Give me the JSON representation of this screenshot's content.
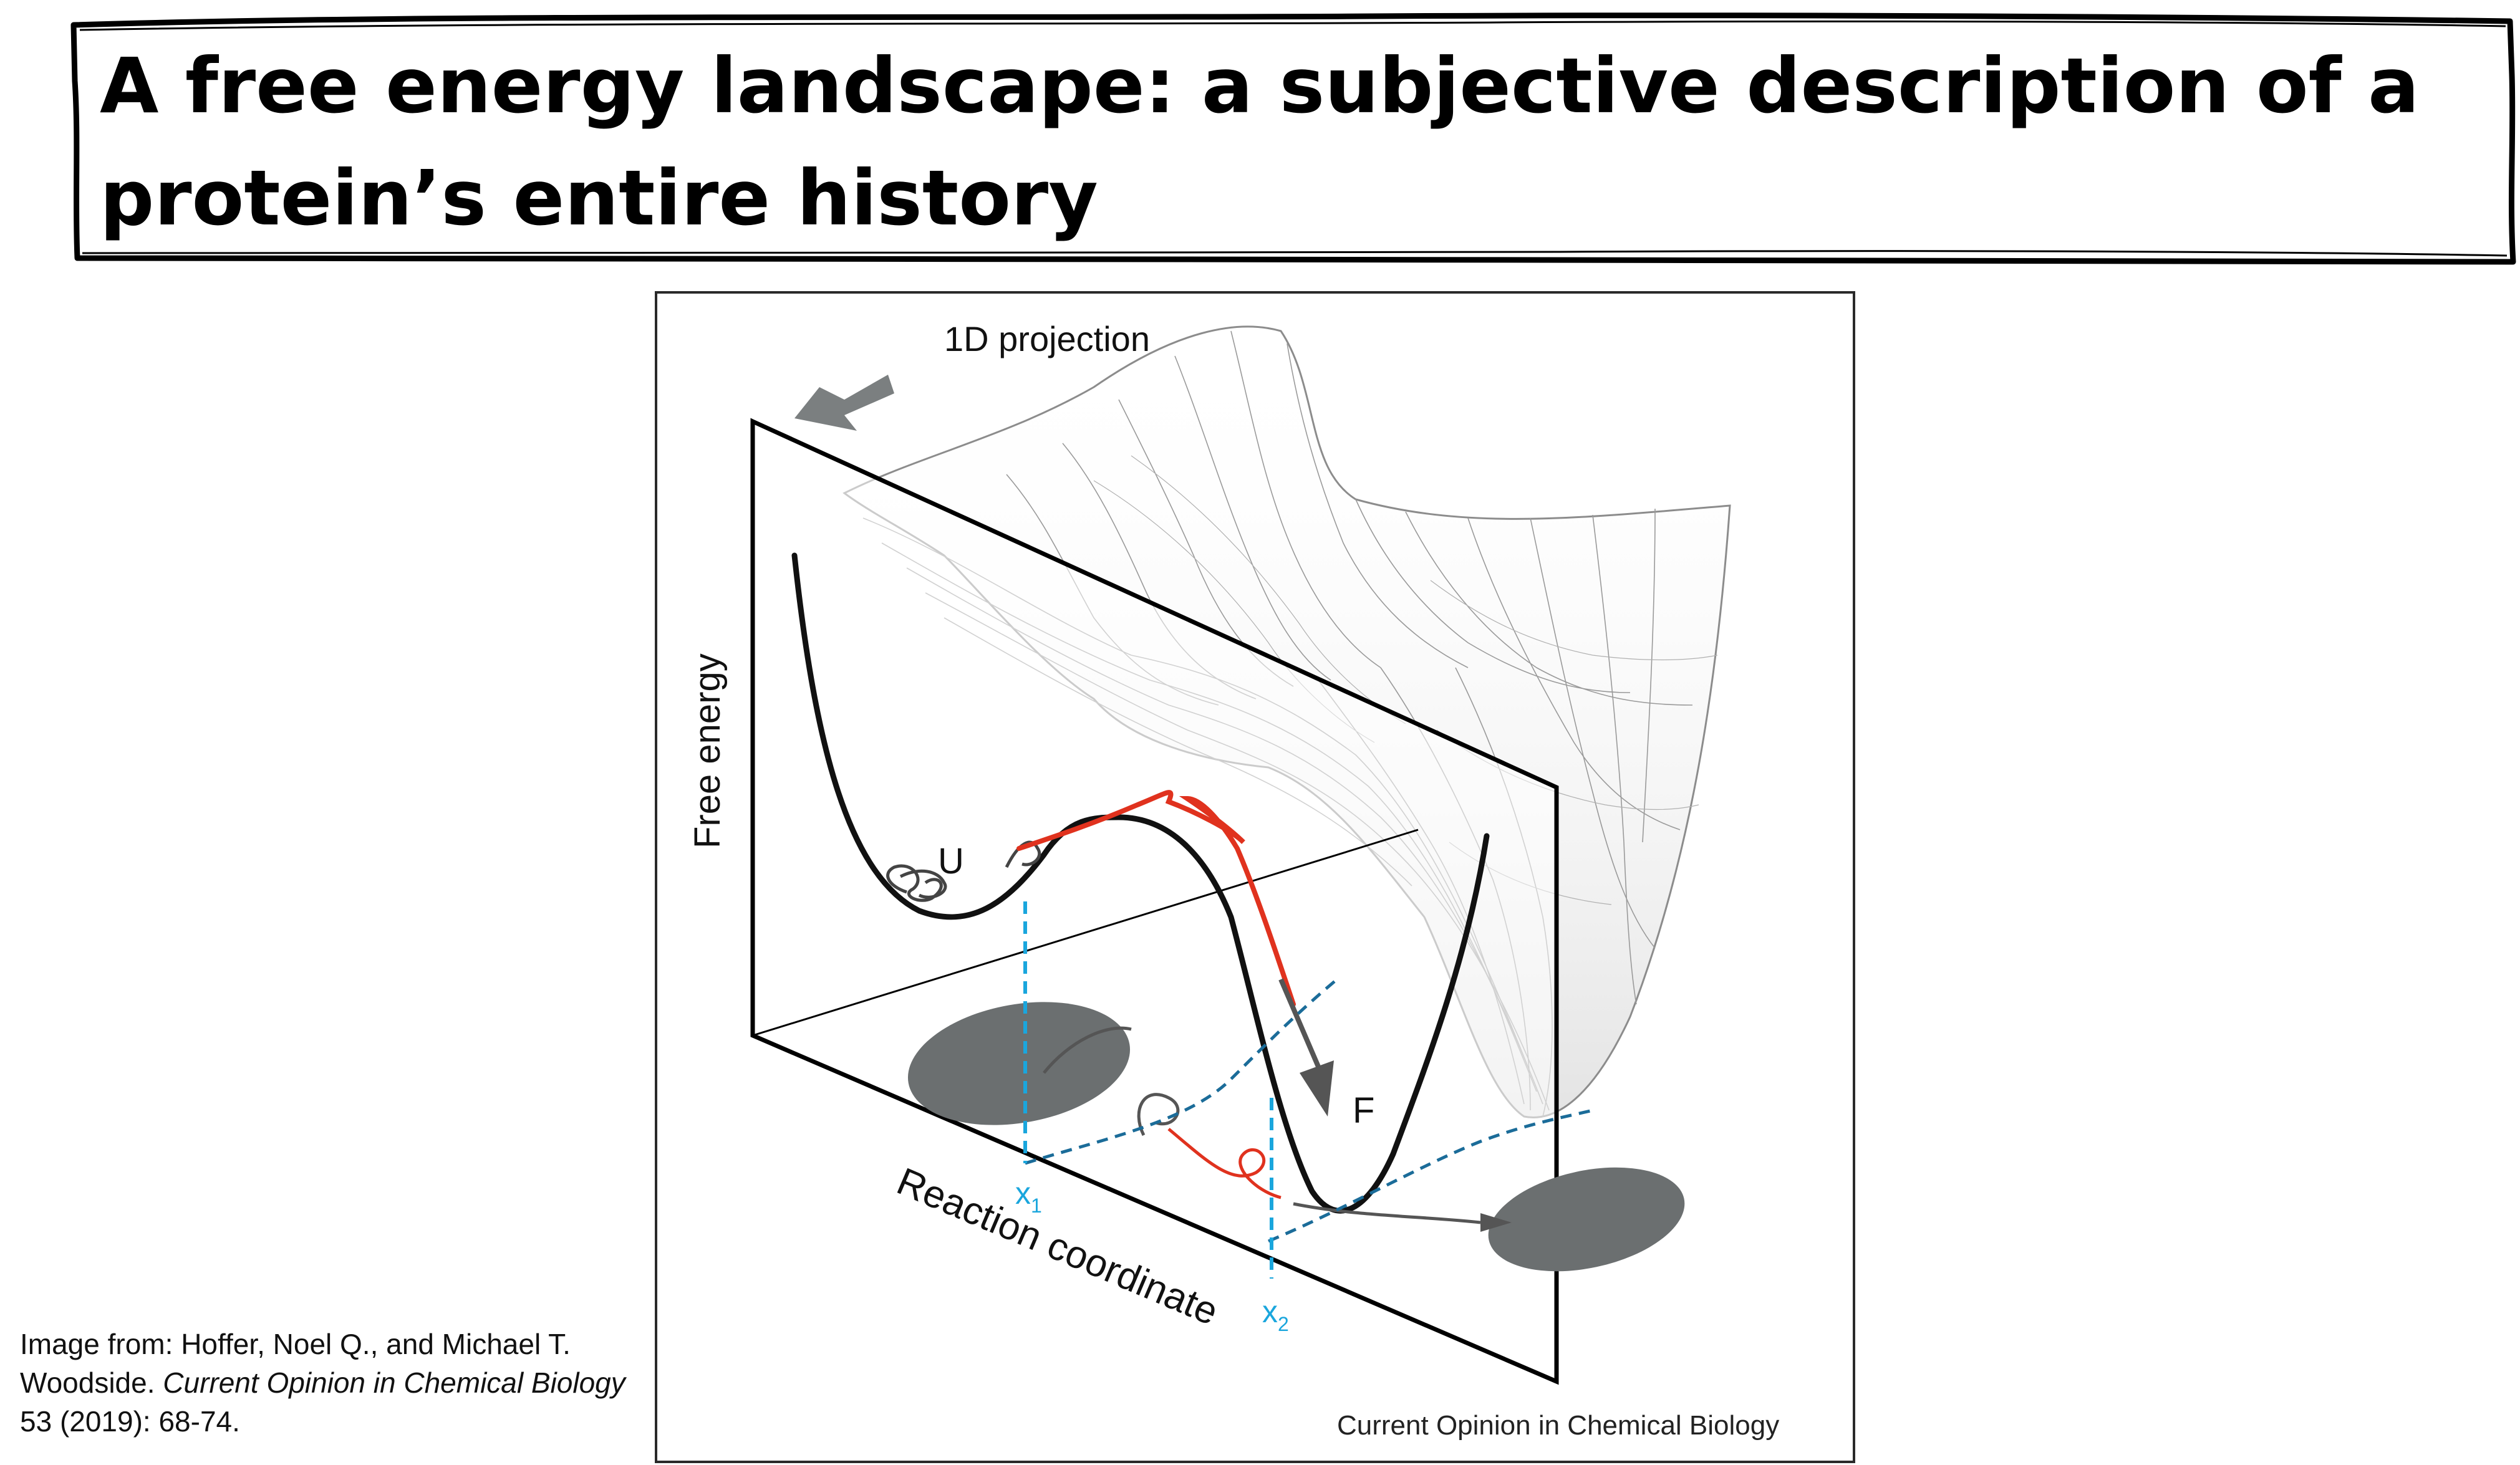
{
  "title": {
    "line1": "A free energy landscape: a subjective description of a",
    "line2": "protein’s entire history"
  },
  "figure": {
    "projection_label": "1D projection",
    "y_axis_label": "Free energy",
    "x_axis_label": "Reaction coordinate",
    "state_unfolded": "U",
    "state_folded": "F",
    "x1": "x",
    "x1_sub": "1",
    "x2": "x",
    "x2_sub": "2",
    "journal_credit": "Current Opinion in Chemical Biology",
    "colors": {
      "profile": "#111111",
      "mesh": "#8c8c8c",
      "path_red": "#e0321e",
      "marker_blue": "#1aa6dd",
      "dashed_path": "#1b6c99",
      "shadow_grey": "#6b6f70"
    }
  },
  "caption": {
    "prefix": "Image from: Hoffer, Noel Q., and Michael T. Woodside. ",
    "journal": "Current Opinion in Chemical Biology",
    "suffix": " 53 (2019): 68-74."
  }
}
